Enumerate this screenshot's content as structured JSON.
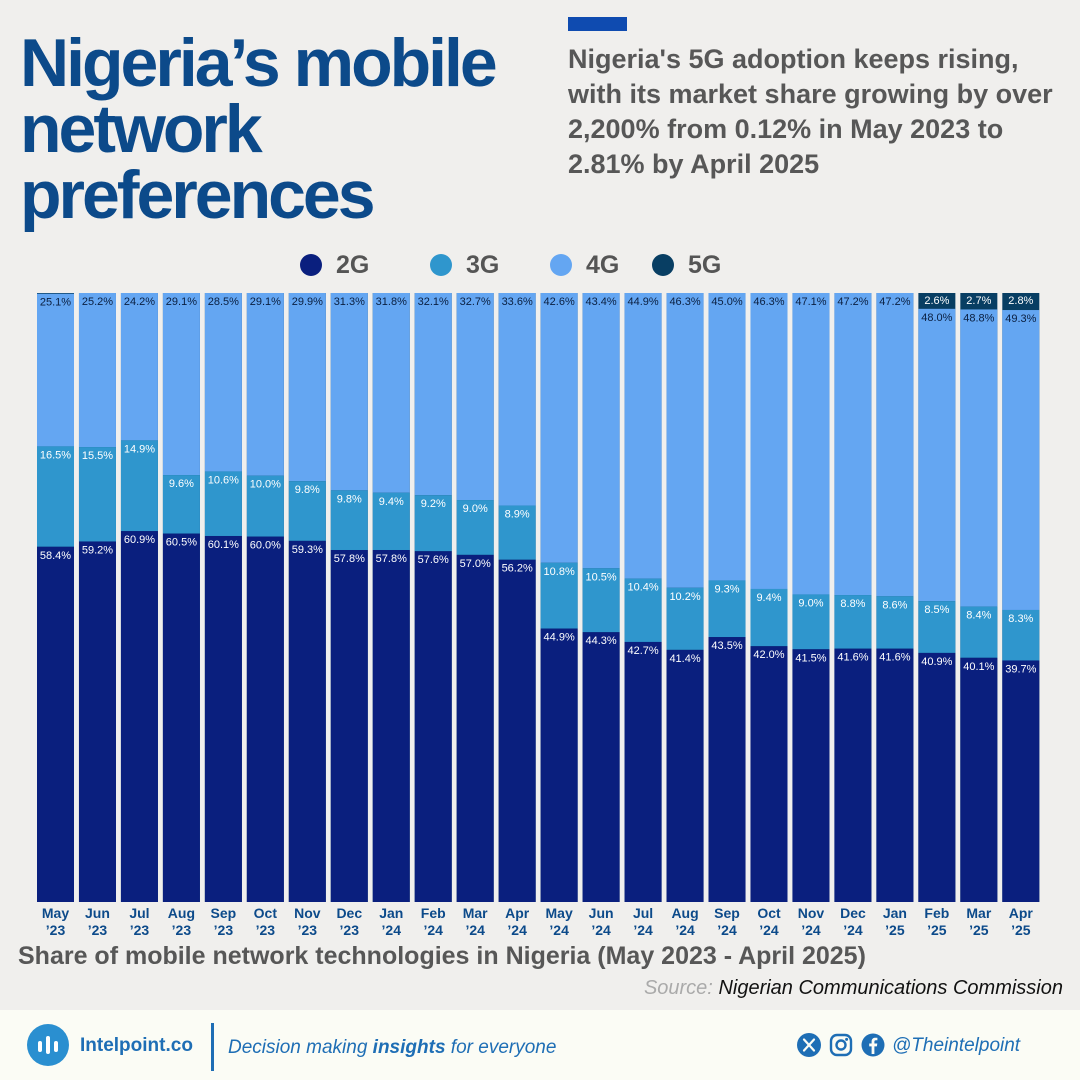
{
  "header": {
    "title": "Nigeria’s mobile network preferences",
    "subtitle": "Nigeria's 5G adoption keeps rising, with its market share growing by over 2,200% from 0.12% in May 2023 to 2.81% by April 2025"
  },
  "legend": [
    {
      "label": "2G",
      "color": "#0a1f7e"
    },
    {
      "label": "3G",
      "color": "#2f96cd"
    },
    {
      "label": "4G",
      "color": "#64a6f2"
    },
    {
      "label": "5G",
      "color": "#083e63"
    }
  ],
  "chart_data": {
    "type": "bar",
    "stacked": true,
    "categories": [
      {
        "month": "May",
        "year": "’23"
      },
      {
        "month": "Jun",
        "year": "’23"
      },
      {
        "month": "Jul",
        "year": "’23"
      },
      {
        "month": "Aug",
        "year": "’23"
      },
      {
        "month": "Sep",
        "year": "’23"
      },
      {
        "month": "Oct",
        "year": "’23"
      },
      {
        "month": "Nov",
        "year": "’23"
      },
      {
        "month": "Dec",
        "year": "’23"
      },
      {
        "month": "Jan",
        "year": "’24"
      },
      {
        "month": "Feb",
        "year": "’24"
      },
      {
        "month": "Mar",
        "year": "’24"
      },
      {
        "month": "Apr",
        "year": "’24"
      },
      {
        "month": "May",
        "year": "’24"
      },
      {
        "month": "Jun",
        "year": "’24"
      },
      {
        "month": "Jul",
        "year": "’24"
      },
      {
        "month": "Aug",
        "year": "’24"
      },
      {
        "month": "Sep",
        "year": "’24"
      },
      {
        "month": "Oct",
        "year": "’24"
      },
      {
        "month": "Nov",
        "year": "’24"
      },
      {
        "month": "Dec",
        "year": "’24"
      },
      {
        "month": "Jan",
        "year": "’25"
      },
      {
        "month": "Feb",
        "year": "’25"
      },
      {
        "month": "Mar",
        "year": "’25"
      },
      {
        "month": "Apr",
        "year": "’25"
      }
    ],
    "series": [
      {
        "name": "2G",
        "color": "#0a1f7e",
        "values": [
          58.4,
          59.2,
          60.9,
          60.5,
          60.1,
          60.0,
          59.3,
          57.8,
          57.8,
          57.6,
          57.0,
          56.2,
          44.9,
          44.3,
          42.7,
          41.4,
          43.5,
          42.0,
          41.5,
          41.6,
          41.6,
          40.9,
          40.1,
          39.7
        ]
      },
      {
        "name": "3G",
        "color": "#2f96cd",
        "values": [
          16.5,
          15.5,
          14.9,
          9.6,
          10.6,
          10.0,
          9.8,
          9.8,
          9.4,
          9.2,
          9.0,
          8.9,
          10.8,
          10.5,
          10.4,
          10.2,
          9.3,
          9.4,
          9.0,
          8.8,
          8.6,
          8.5,
          8.4,
          8.3
        ]
      },
      {
        "name": "4G",
        "color": "#64a6f2",
        "values": [
          25.1,
          25.2,
          24.2,
          29.1,
          28.5,
          29.1,
          29.9,
          31.3,
          31.8,
          32.1,
          32.7,
          33.6,
          42.6,
          43.4,
          44.9,
          46.3,
          45.0,
          46.3,
          47.1,
          47.2,
          47.2,
          48.0,
          48.8,
          49.3
        ]
      },
      {
        "name": "5G",
        "color": "#083e63",
        "values": [
          0.12,
          null,
          null,
          null,
          null,
          null,
          null,
          null,
          null,
          null,
          null,
          null,
          null,
          null,
          null,
          null,
          null,
          null,
          null,
          null,
          null,
          2.6,
          2.7,
          2.8
        ]
      }
    ],
    "ylim": [
      0,
      100
    ],
    "unit": "%"
  },
  "caption": "Share of mobile network technologies in Nigeria (May 2023 - April 2025)",
  "source": {
    "label": "Source:",
    "name": "Nigerian Communications Commission"
  },
  "footer": {
    "brand": "Intelpoint.co",
    "tagline_before": "Decision making ",
    "tagline_bold": "insights",
    "tagline_after": " for everyone",
    "handle": "@Theintelpoint",
    "icons": [
      "x-icon",
      "instagram-icon",
      "facebook-icon"
    ]
  }
}
